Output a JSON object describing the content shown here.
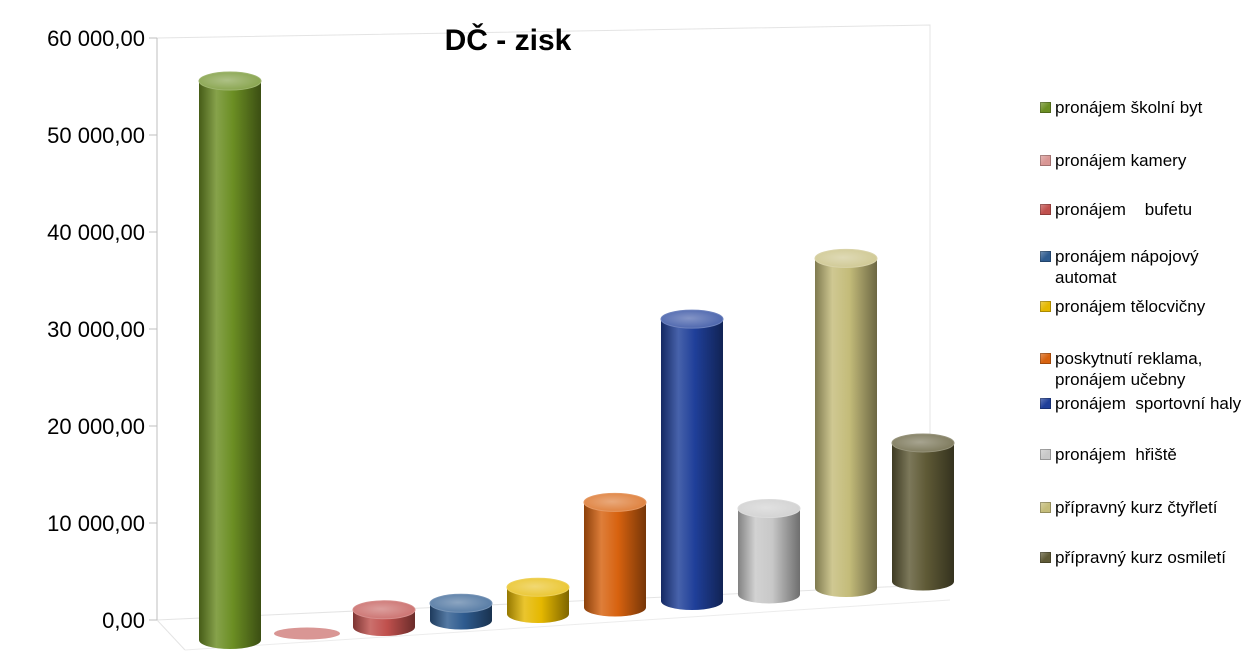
{
  "chart_data": {
    "type": "bar",
    "title": "DČ - zisk",
    "xlabel": "",
    "ylabel": "",
    "ylim": [
      0,
      60000
    ],
    "yticks": [
      "0,00",
      "10 000,00",
      "20 000,00",
      "30 000,00",
      "40 000,00",
      "50 000,00",
      "60 000,00"
    ],
    "legend_position": "right",
    "grid": false,
    "series": [
      {
        "name": "pronájem školní byt",
        "value": 58500,
        "color": "#6b8e23"
      },
      {
        "name": "pronájem kamery",
        "value": 0,
        "color": "#d99694"
      },
      {
        "name": "pronájem    bufetu",
        "value": 1800,
        "color": "#c0504d"
      },
      {
        "name": "pronájem nápojový automat",
        "value": 1800,
        "color": "#2e5b8f"
      },
      {
        "name": "pronájem tělocvičny",
        "value": 2800,
        "color": "#e5b800"
      },
      {
        "name": "poskytnutí reklama, pronájem učebny",
        "value": 11000,
        "color": "#d7620f"
      },
      {
        "name": "pronájem  sportovní haly",
        "value": 29500,
        "color": "#1f3f99"
      },
      {
        "name": "pronájem  hřiště",
        "value": 9000,
        "color": "#c8c8c8"
      },
      {
        "name": "přípravný kurz čtyřletí",
        "value": 34500,
        "color": "#c4bc7a"
      },
      {
        "name": "přípravný kurz osmiletí",
        "value": 14500,
        "color": "#5f5a36"
      }
    ]
  }
}
